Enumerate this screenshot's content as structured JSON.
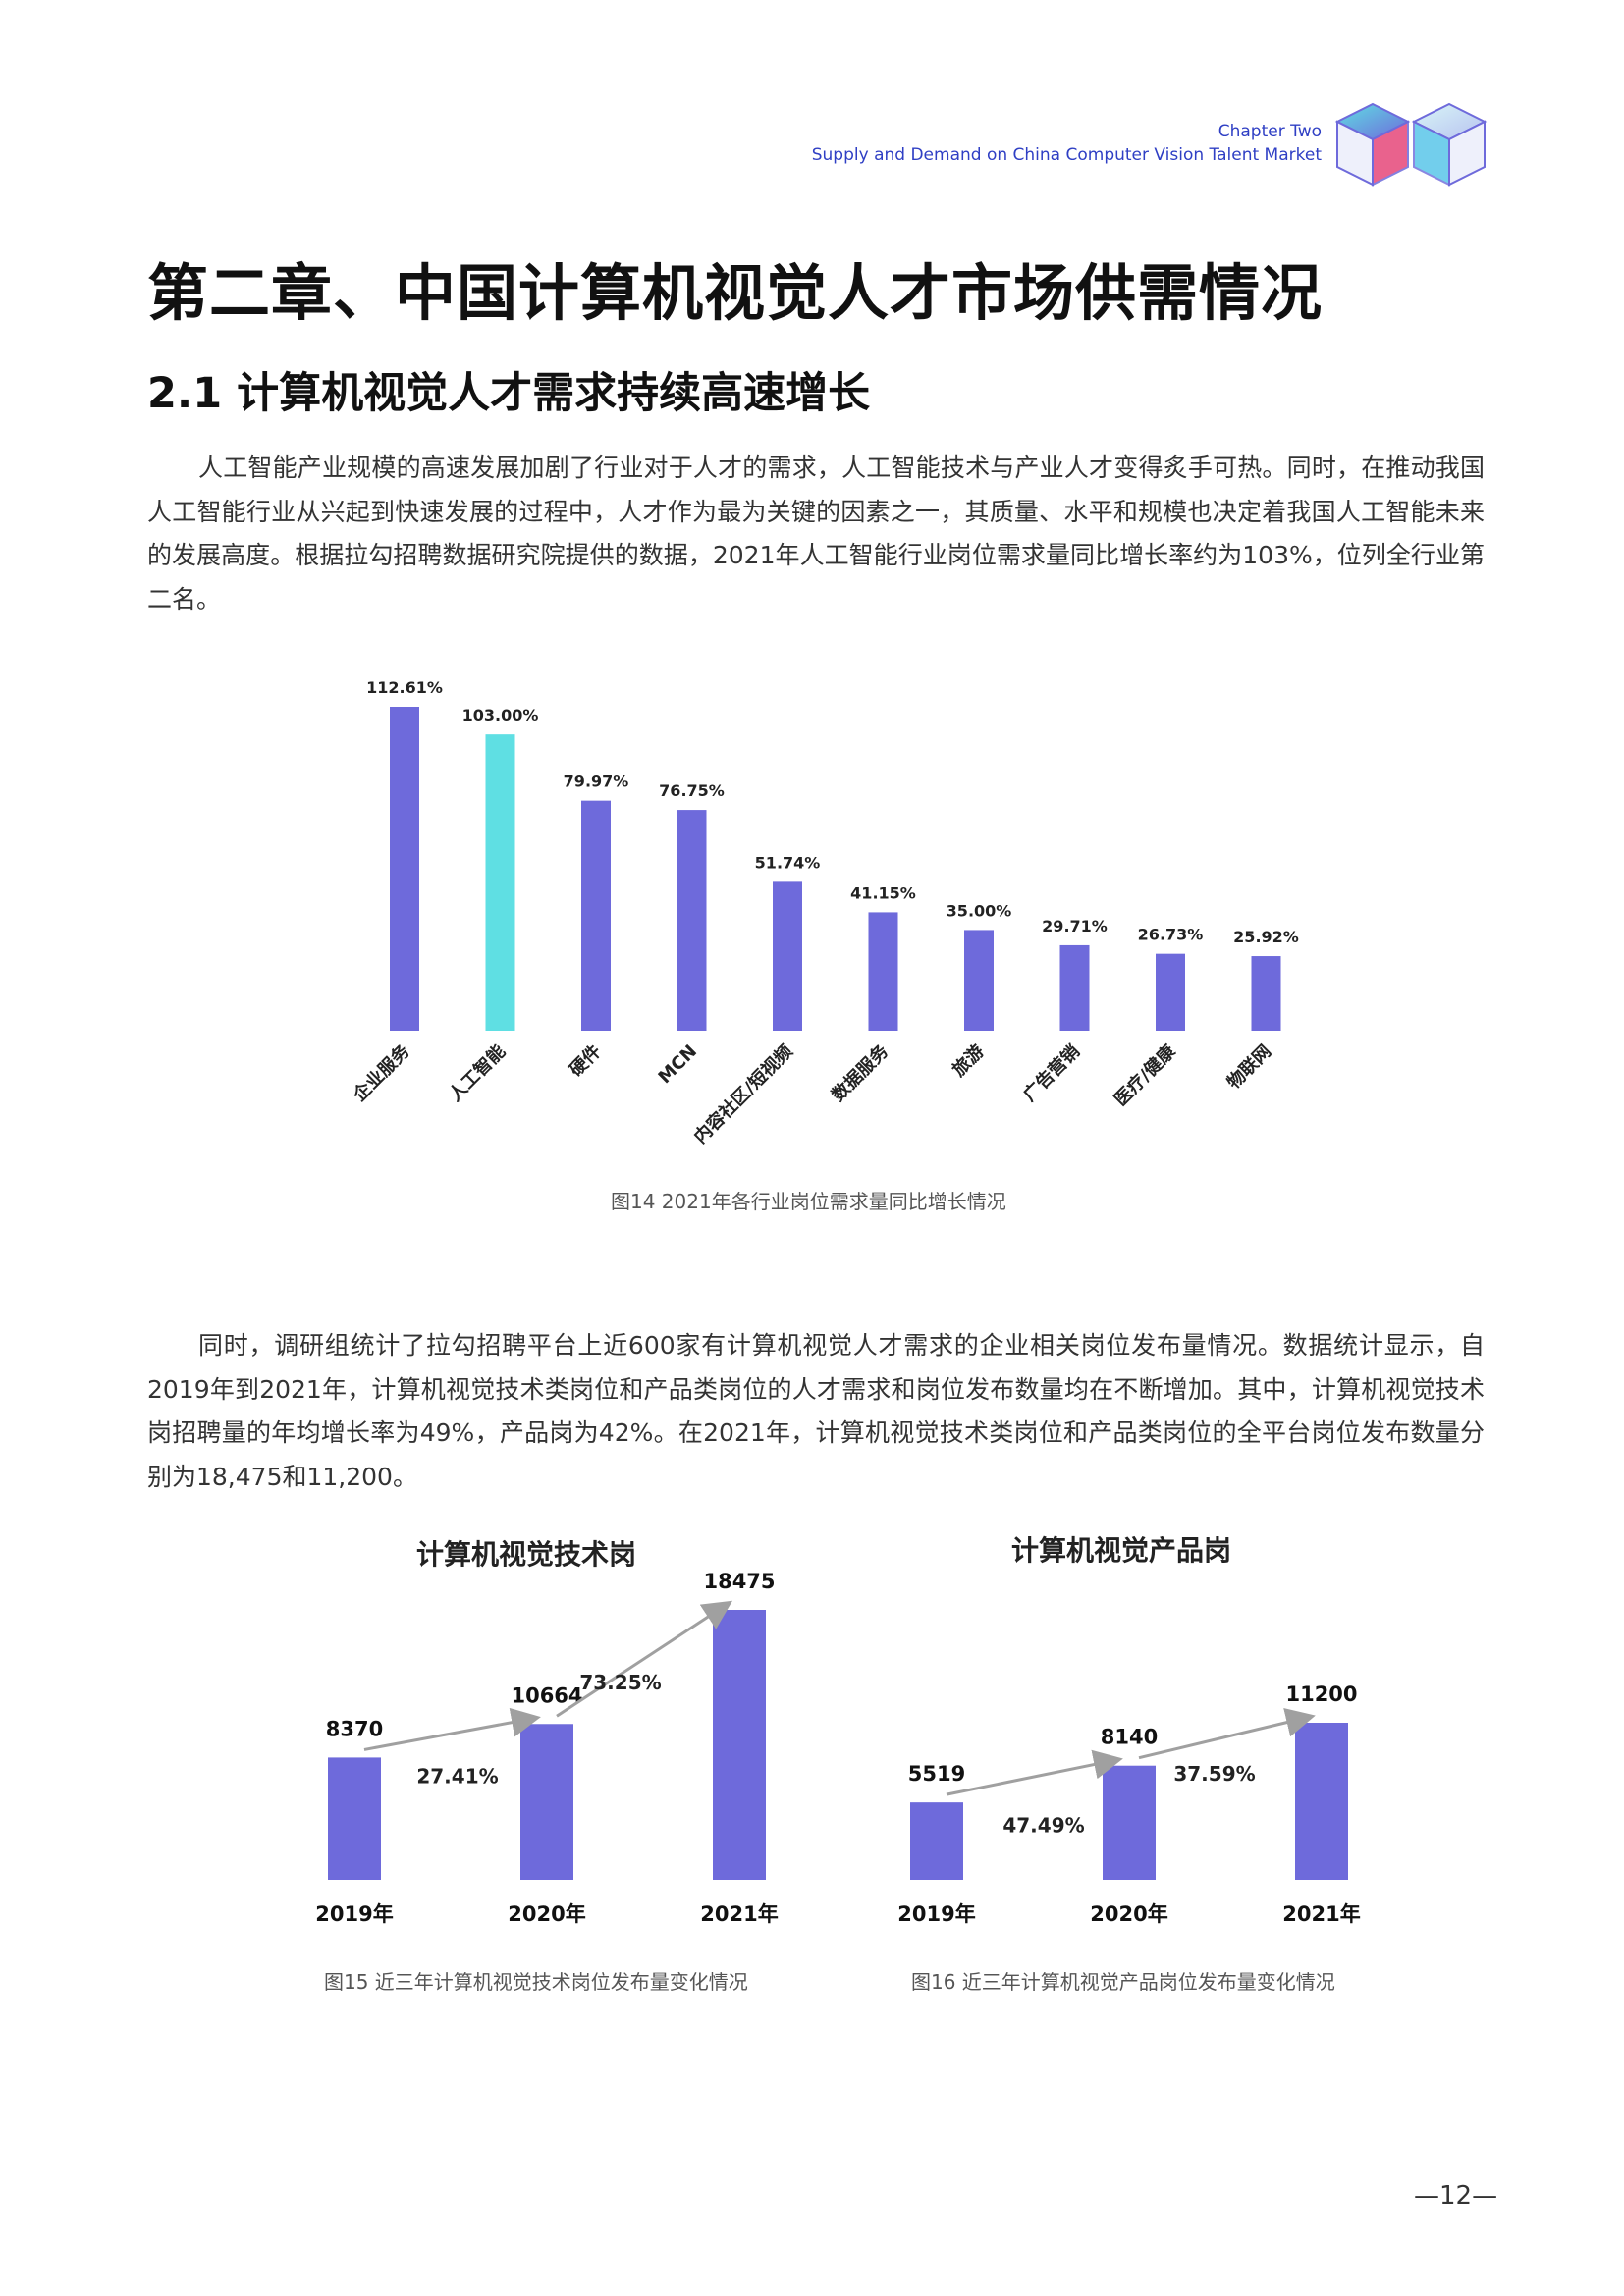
{
  "header": {
    "chapter_label": "Chapter Two",
    "subtitle": "Supply and Demand on China Computer Vision Talent Market"
  },
  "chapter_title": "第二章、中国计算机视觉人才市场供需情况",
  "section_title": "2.1 计算机视觉人才需求持续高速增长",
  "paragraphs": [
    "人工智能产业规模的高速发展加剧了行业对于人才的需求，人工智能技术与产业人才变得炙手可热。同时，在推动我国人工智能行业从兴起到快速发展的过程中，人才作为最为关键的因素之一，其质量、水平和规模也决定着我国人工智能未来的发展高度。根据拉勾招聘数据研究院提供的数据，2021年人工智能行业岗位需求量同比增长率约为103%，位列全行业第二名。",
    "同时，调研组统计了拉勾招聘平台上近600家有计算机视觉人才需求的企业相关岗位发布量情况。数据统计显示，自2019年到2021年，计算机视觉技术类岗位和产品类岗位的人才需求和岗位发布数量均在不断增加。其中，计算机视觉技术岗招聘量的年均增长率为49%，产品岗为42%。在2021年，计算机视觉技术类岗位和产品类岗位的全平台岗位发布数量分别为18,475和11,200。"
  ],
  "colors": {
    "bar": "#6e6adb",
    "highlight": "#5fdfe3",
    "arrow": "#a0a0a0",
    "header_blue": "#2f3fc4"
  },
  "chart_data": [
    {
      "type": "bar",
      "title": "",
      "caption": "图14 2021年各行业岗位需求量同比增长情况",
      "categories": [
        "企业服务",
        "人工智能",
        "硬件",
        "MCN",
        "内容社区/短视频",
        "数据服务",
        "旅游",
        "广告营销",
        "医疗/健康",
        "物联网"
      ],
      "values": [
        112.61,
        103.0,
        79.97,
        76.75,
        51.74,
        41.15,
        35.0,
        29.71,
        26.73,
        25.92
      ],
      "data_labels": [
        "112.61%",
        "103.00%",
        "79.97%",
        "76.75%",
        "51.74%",
        "41.15%",
        "35.00%",
        "29.71%",
        "26.73%",
        "25.92%"
      ],
      "highlight_category": "人工智能",
      "ylim": [
        0,
        112.61
      ],
      "grid": false,
      "legend": false
    },
    {
      "type": "bar",
      "title": "计算机视觉技术岗",
      "caption": "图15 近三年计算机视觉技术岗位发布量变化情况",
      "categories": [
        "2019年",
        "2020年",
        "2021年"
      ],
      "values": [
        8370,
        10664,
        18475
      ],
      "growth_labels": [
        "27.41%",
        "73.25%"
      ],
      "ylim": [
        0,
        18475
      ],
      "grid": false,
      "legend": false
    },
    {
      "type": "bar",
      "title": "计算机视觉产品岗",
      "caption": "图16 近三年计算机视觉产品岗位发布量变化情况",
      "categories": [
        "2019年",
        "2020年",
        "2021年"
      ],
      "values": [
        5519,
        8140,
        11200
      ],
      "growth_labels": [
        "47.49%",
        "37.59%"
      ],
      "ylim": [
        0,
        11200
      ],
      "grid": false,
      "legend": false
    }
  ],
  "page_number": "—12—"
}
